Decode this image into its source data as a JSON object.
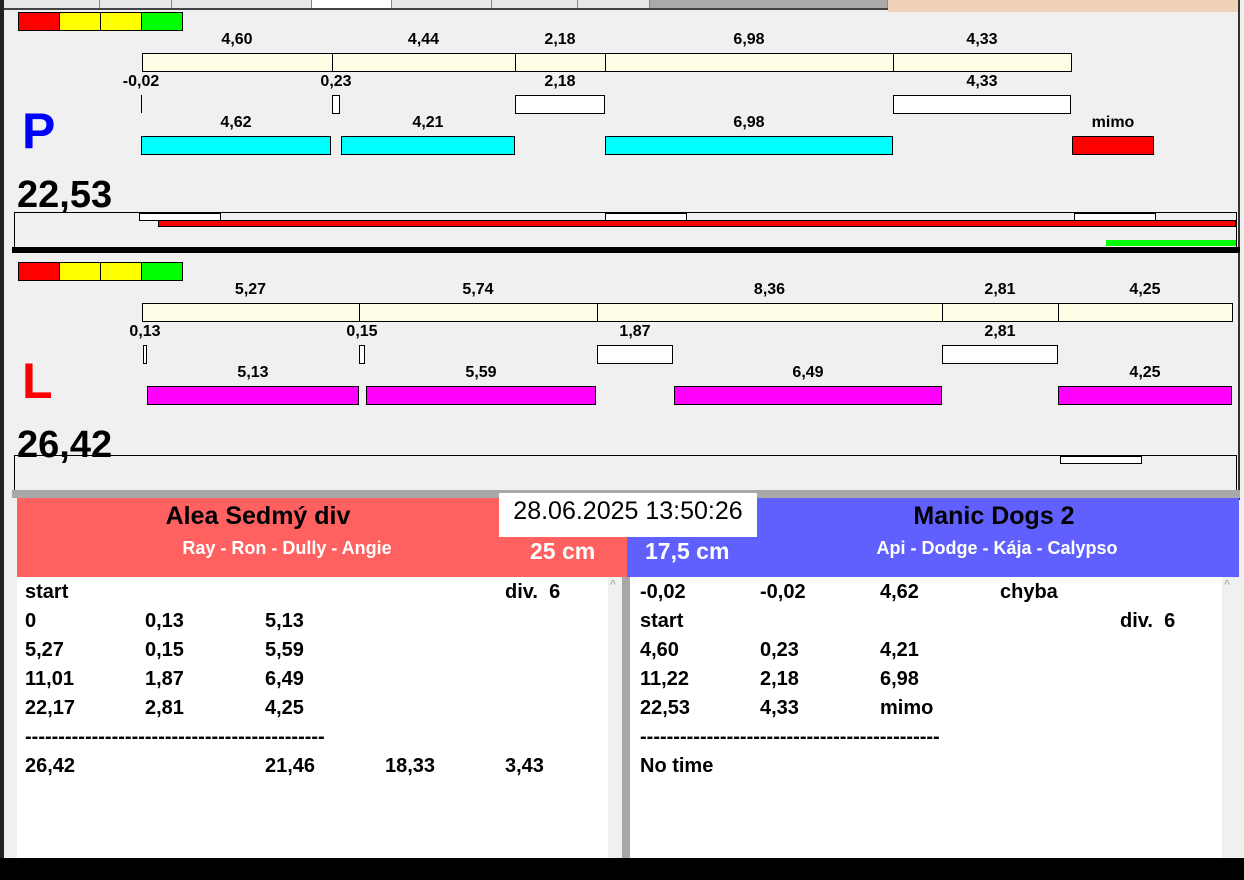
{
  "colors": {
    "indicator": [
      "#ff0000",
      "#ffff00",
      "#ffff00",
      "#00ff00"
    ],
    "planned": "#fffde6",
    "gap": "#ffffff",
    "lane_p_run": "#00ffff",
    "lane_l_run": "#ff00ff",
    "fault": "#ff0000",
    "progress_red": "#ff0000",
    "progress_green": "#00ff00",
    "left_team": "#ff6060",
    "right_team": "#6060ff"
  },
  "lanes": [
    {
      "letter": "P",
      "letter_color": "#0000ff",
      "total": "22,53",
      "row1": [
        "4,60",
        "4,44",
        "2,18",
        "6,98",
        "4,33"
      ],
      "row2": [
        "-0,02",
        "0,23",
        "2,18",
        "4,33"
      ],
      "row3": [
        "4,62",
        "4,21",
        "6,98",
        "mimo"
      ]
    },
    {
      "letter": "L",
      "letter_color": "#ff0000",
      "total": "26,42",
      "row1": [
        "5,27",
        "5,74",
        "8,36",
        "2,81",
        "4,25"
      ],
      "row2": [
        "0,13",
        "0,15",
        "1,87",
        "2,81"
      ],
      "row3": [
        "5,13",
        "5,59",
        "6,49",
        "4,25"
      ]
    }
  ],
  "datetime": "28.06.2025 13:50:26",
  "left_team": {
    "name": "Alea Sedmý div",
    "dogs": "Ray - Ron - Dully - Angie",
    "height": "25 cm",
    "rows": [
      [
        "start",
        "",
        "",
        "",
        "div.  6"
      ],
      [
        "0",
        "0,13",
        "5,13",
        "",
        ""
      ],
      [
        "5,27",
        "0,15",
        "5,59",
        "",
        ""
      ],
      [
        "11,01",
        "1,87",
        "6,49",
        "",
        ""
      ],
      [
        "22,17",
        "2,81",
        "4,25",
        "",
        ""
      ],
      [
        "---------------------------------------------",
        "",
        "",
        "",
        ""
      ],
      [
        "26,42",
        "",
        "21,46",
        "18,33",
        "3,43"
      ]
    ]
  },
  "right_team": {
    "name": "Manic Dogs 2",
    "dogs": "Api - Dodge - Kája - Calypso",
    "height": "17,5 cm",
    "rows": [
      [
        "-0,02",
        "-0,02",
        "4,62",
        "chyba",
        ""
      ],
      [
        "start",
        "",
        "",
        "",
        "div.  6"
      ],
      [
        "4,60",
        "0,23",
        "4,21",
        "",
        ""
      ],
      [
        "11,22",
        "2,18",
        "6,98",
        "",
        ""
      ],
      [
        "22,53",
        "4,33",
        "mimo",
        "",
        ""
      ],
      [
        "---------------------------------------------",
        "",
        "",
        "",
        ""
      ],
      [
        "No time",
        "",
        "",
        "",
        ""
      ]
    ]
  }
}
